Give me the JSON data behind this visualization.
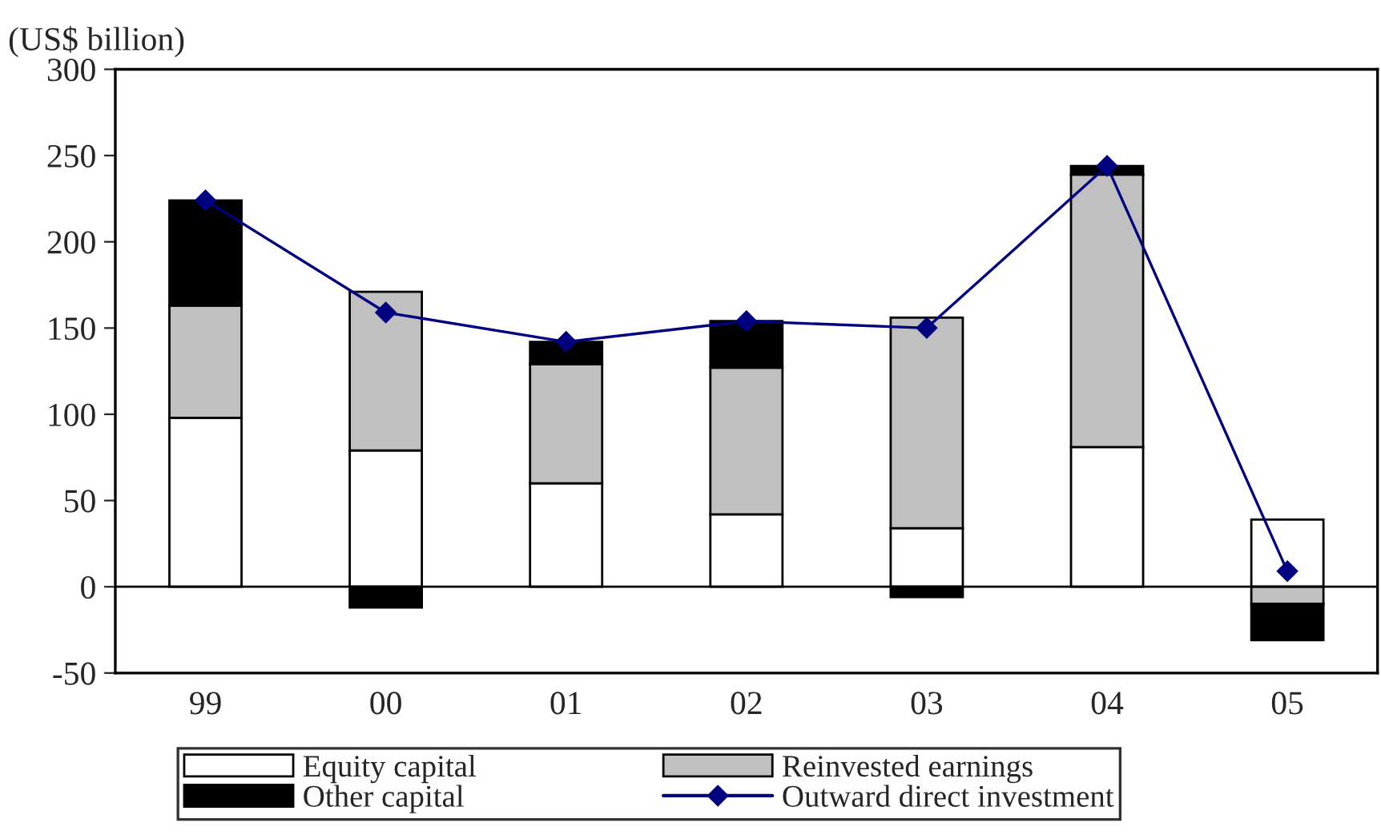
{
  "chart_data": {
    "type": "bar",
    "stacked": true,
    "ylabel": "(US$ billion)",
    "categories": [
      "99",
      "00",
      "01",
      "02",
      "03",
      "04",
      "05"
    ],
    "series": [
      {
        "name": "Equity capital",
        "color": "#ffffff",
        "values": [
          98,
          79,
          60,
          42,
          34,
          81,
          39
        ]
      },
      {
        "name": "Reinvested earnings",
        "color": "#c0c0c0",
        "values": [
          65,
          92,
          69,
          85,
          122,
          158,
          -10
        ]
      },
      {
        "name": "Other capital",
        "color": "#000000",
        "values": [
          61,
          -12,
          13,
          27,
          -6,
          5,
          -21
        ]
      },
      {
        "name": "Outward direct investment",
        "type": "line",
        "color": "#000080",
        "marker": "diamond",
        "values": [
          224,
          159,
          142,
          154,
          150,
          244,
          9
        ]
      }
    ],
    "ylim": [
      -50,
      300
    ],
    "yticks": [
      -50,
      0,
      50,
      100,
      150,
      200,
      250,
      300
    ],
    "ref_lines": [
      {
        "axis": "y",
        "value": 0,
        "color": "#000000"
      }
    ],
    "grid": false,
    "legend": "bottom"
  }
}
